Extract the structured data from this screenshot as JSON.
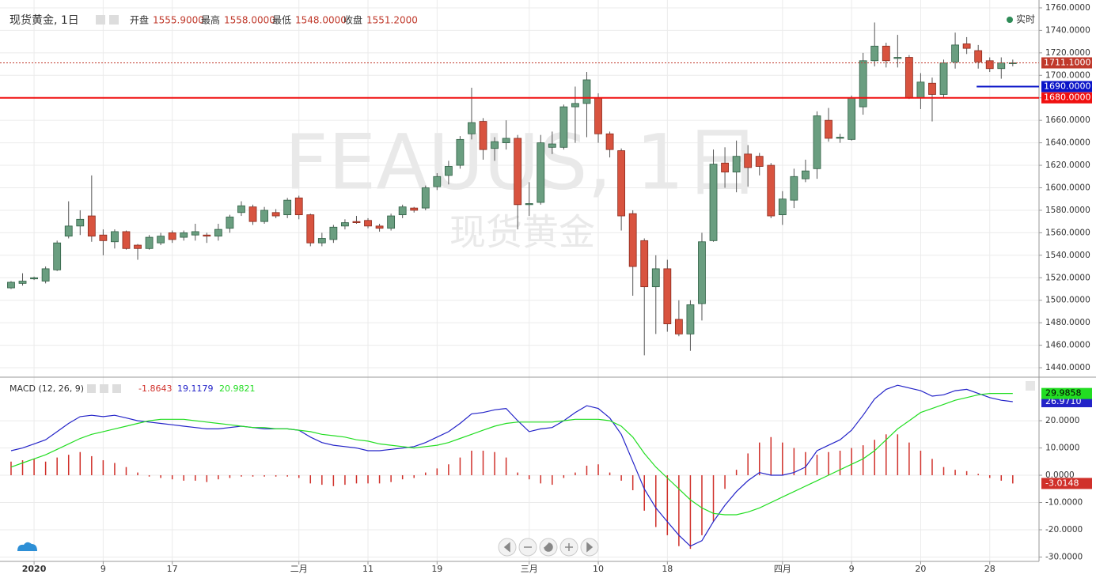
{
  "header": {
    "title": "现货黄金, 1日",
    "fields": [
      {
        "label": "开盘",
        "value": "1555.9000"
      },
      {
        "label": "最高",
        "value": "1558.0000"
      },
      {
        "label": "最低",
        "value": "1548.0000"
      },
      {
        "label": "收盘",
        "value": "1551.2000"
      }
    ],
    "status": "实时"
  },
  "chart_data": [
    {
      "type": "candlestick",
      "watermark": "FEAUUS, 1日",
      "watermark_sub": "现货黄金",
      "categories": [
        null,
        null,
        "2020",
        null,
        null,
        null,
        null,
        null,
        "9",
        null,
        null,
        null,
        null,
        null,
        "17",
        null,
        null,
        null,
        null,
        null,
        null,
        null,
        null,
        null,
        null,
        "二月",
        null,
        null,
        null,
        null,
        null,
        "11",
        null,
        null,
        null,
        null,
        null,
        "19",
        null,
        null,
        null,
        null,
        null,
        null,
        null,
        "三月",
        null,
        null,
        null,
        null,
        null,
        "10",
        null,
        null,
        null,
        null,
        null,
        "18",
        null,
        null,
        null,
        null,
        null,
        null,
        null,
        null,
        null,
        "四月",
        null,
        null,
        null,
        null,
        null,
        "9",
        null,
        null,
        null,
        null,
        null,
        "20",
        null,
        null,
        null,
        null,
        null,
        "28",
        null,
        null
      ],
      "open": [
        1511,
        1515,
        1519,
        1517,
        1527,
        1557,
        1566,
        1575,
        1558,
        1552,
        1561,
        1549,
        1546,
        1551,
        1560,
        1556,
        1558,
        1558,
        1557,
        1564,
        1578,
        1583,
        1570,
        1578,
        1576,
        1591,
        1576,
        1551,
        1554,
        1566,
        1570,
        1571,
        1566,
        1564,
        1576,
        1582,
        1582,
        1601,
        1611,
        1620,
        1648,
        1659,
        1635,
        1640,
        1644,
        1585,
        1587,
        1636,
        1636,
        1672,
        1675,
        1680,
        1648,
        1633,
        1577,
        1553,
        1512,
        1528,
        1483,
        1470,
        1497,
        1553,
        1622,
        1614,
        1630,
        1628,
        1620,
        1576,
        1589,
        1608,
        1617,
        1660,
        1644,
        1643,
        1672,
        1713,
        1726,
        1715,
        1716,
        1680,
        1693,
        1683,
        1712,
        1728,
        1722,
        1713,
        1706,
        1711
      ],
      "high": [
        1517,
        1524,
        1521,
        1530,
        1553,
        1588,
        1580,
        1611,
        1563,
        1563,
        1562,
        1550,
        1558,
        1560,
        1562,
        1562,
        1568,
        1560,
        1568,
        1576,
        1588,
        1585,
        1583,
        1581,
        1591,
        1593,
        1577,
        1560,
        1567,
        1572,
        1575,
        1573,
        1568,
        1577,
        1585,
        1583,
        1602,
        1613,
        1624,
        1646,
        1689,
        1662,
        1645,
        1660,
        1647,
        1605,
        1647,
        1650,
        1674,
        1690,
        1703,
        1684,
        1650,
        1635,
        1580,
        1555,
        1540,
        1536,
        1500,
        1500,
        1560,
        1634,
        1636,
        1642,
        1638,
        1631,
        1622,
        1597,
        1617,
        1625,
        1668,
        1671,
        1648,
        1682,
        1720,
        1747,
        1729,
        1736,
        1718,
        1702,
        1698,
        1714,
        1738,
        1734,
        1727,
        1716,
        1716,
        1714
      ],
      "low": [
        1510,
        1513,
        1518,
        1515,
        1526,
        1555,
        1558,
        1552,
        1540,
        1546,
        1545,
        1536,
        1545,
        1549,
        1551,
        1553,
        1553,
        1551,
        1553,
        1560,
        1575,
        1567,
        1568,
        1573,
        1573,
        1572,
        1548,
        1548,
        1551,
        1563,
        1568,
        1564,
        1561,
        1562,
        1573,
        1578,
        1580,
        1598,
        1603,
        1617,
        1643,
        1625,
        1624,
        1634,
        1563,
        1575,
        1585,
        1630,
        1634,
        1640,
        1645,
        1640,
        1627,
        1562,
        1504,
        1451,
        1470,
        1472,
        1468,
        1455,
        1482,
        1552,
        1600,
        1596,
        1601,
        1611,
        1573,
        1567,
        1582,
        1605,
        1608,
        1641,
        1640,
        1642,
        1665,
        1708,
        1707,
        1707,
        1679,
        1670,
        1659,
        1680,
        1706,
        1719,
        1706,
        1703,
        1697,
        1708
      ],
      "close": [
        1516,
        1517,
        1520,
        1528,
        1551,
        1566,
        1572,
        1557,
        1553,
        1561,
        1546,
        1546,
        1556,
        1557,
        1554,
        1560,
        1561,
        1557,
        1563,
        1574,
        1584,
        1570,
        1580,
        1575,
        1589,
        1576,
        1551,
        1555,
        1565,
        1569,
        1569,
        1566,
        1564,
        1575,
        1583,
        1580,
        1600,
        1610,
        1619,
        1643,
        1658,
        1634,
        1641,
        1644,
        1585,
        1586,
        1640,
        1639,
        1672,
        1675,
        1696,
        1648,
        1634,
        1575,
        1530,
        1512,
        1528,
        1479,
        1470,
        1496,
        1552,
        1621,
        1614,
        1628,
        1618,
        1619,
        1575,
        1590,
        1610,
        1615,
        1664,
        1644,
        1645,
        1680,
        1713,
        1726,
        1713,
        1716,
        1680,
        1694,
        1683,
        1711,
        1727,
        1724,
        1712,
        1706,
        1711,
        1711.1
      ],
      "up_color": "#6a9e80",
      "down_color": "#d8533f",
      "ylim": [
        1433,
        1767
      ],
      "yticks": [
        {
          "value": 1440,
          "label": "1440.0000"
        },
        {
          "value": 1460,
          "label": "1460.0000"
        },
        {
          "value": 1480,
          "label": "1480.0000"
        },
        {
          "value": 1500,
          "label": "1500.0000"
        },
        {
          "value": 1520,
          "label": "1520.0000"
        },
        {
          "value": 1540,
          "label": "1540.0000"
        },
        {
          "value": 1560,
          "label": "1560.0000"
        },
        {
          "value": 1580,
          "label": "1580.0000"
        },
        {
          "value": 1600,
          "label": "1600.0000"
        },
        {
          "value": 1620,
          "label": "1620.0000"
        },
        {
          "value": 1640,
          "label": "1640.0000"
        },
        {
          "value": 1660,
          "label": "1660.0000"
        },
        {
          "value": 1680,
          "label": "1680.0000"
        },
        {
          "value": 1700,
          "label": "1700.0000"
        },
        {
          "value": 1720,
          "label": "1720.0000"
        },
        {
          "value": 1740,
          "label": "1740.0000"
        },
        {
          "value": 1760,
          "label": "1760.0000"
        }
      ],
      "hlines": [
        {
          "value": 1711.1,
          "label": "1711.1000",
          "color": "#c0392b",
          "dash": true
        },
        {
          "value": 1690,
          "label": "1690.0000",
          "color": "#0a14c8",
          "from_index": 84
        },
        {
          "value": 1680,
          "label": "1680.0000",
          "color": "#f01010"
        }
      ],
      "grid": true
    },
    {
      "type": "macd",
      "title": "MACD (12, 26, 9)",
      "series": [
        {
          "kind": "histogram",
          "color": "#d0302a",
          "header_value": "-1.8643",
          "last_label": "-3.0148",
          "values": [
            5,
            5.5,
            6,
            5,
            6.5,
            7.5,
            8.5,
            7,
            5.5,
            4.5,
            3,
            1,
            -0.5,
            -1,
            -1.5,
            -2,
            -2,
            -2.5,
            -1.5,
            -1,
            -0.5,
            -0.5,
            -0.5,
            -0.5,
            -0.5,
            -1,
            -3,
            -3.5,
            -4,
            -3.5,
            -3,
            -3,
            -3,
            -2.5,
            -1.5,
            -1,
            1,
            2.5,
            4,
            6.5,
            9,
            9,
            8.5,
            6.5,
            1,
            -1.5,
            -3,
            -3.5,
            -1,
            1,
            3.5,
            4,
            1,
            -2,
            -5.5,
            -13,
            -19,
            -22,
            -26,
            -27,
            -22,
            -17,
            -5,
            2,
            8,
            12,
            14,
            12,
            10,
            8.5,
            7.5,
            8.5,
            9,
            10,
            11,
            13,
            15,
            15,
            12,
            9,
            6,
            3,
            2,
            1.5,
            0.5,
            -1,
            -2,
            -3.0148
          ]
        },
        {
          "kind": "line",
          "color": "#2323c8",
          "header_value": "19.1179",
          "last_label": "26.9710",
          "values": [
            9,
            10,
            11.5,
            13,
            16,
            19,
            21.5,
            22,
            21.5,
            22,
            21,
            20,
            19.5,
            19,
            18.5,
            18,
            17.5,
            17,
            17,
            17.5,
            18,
            17.5,
            17,
            17,
            17,
            16.5,
            14,
            12,
            11,
            10.5,
            10,
            9,
            9,
            9.5,
            10,
            10.5,
            12,
            14,
            16,
            19,
            22.5,
            23,
            24,
            24.5,
            20,
            16,
            17,
            17.5,
            20,
            23,
            25.5,
            24.5,
            21,
            15,
            5,
            -5,
            -12,
            -17,
            -22,
            -26,
            -24,
            -17,
            -11,
            -6,
            -2,
            1,
            0,
            0,
            1,
            3,
            9,
            11,
            13,
            16.5,
            22,
            28,
            31.5,
            33,
            32,
            31,
            29,
            29.5,
            31,
            31.5,
            30,
            28.5,
            27.5,
            26.971
          ]
        },
        {
          "kind": "line",
          "color": "#22dd22",
          "header_value": "20.9821",
          "last_label": "29.9858",
          "values": [
            3,
            4.5,
            6,
            7.5,
            9.5,
            11.5,
            13.5,
            15,
            16,
            17,
            18,
            19,
            20,
            20.5,
            20.5,
            20.5,
            20,
            19.5,
            19,
            18.5,
            18,
            17.5,
            17.5,
            17,
            17,
            16.5,
            16,
            15,
            14.5,
            14,
            13,
            12.5,
            11.5,
            11,
            10.5,
            10,
            10.5,
            11,
            12,
            13.5,
            15,
            16.5,
            18,
            19,
            19.5,
            19.5,
            19.5,
            19.5,
            20,
            20.5,
            20.5,
            20.5,
            20,
            18,
            14,
            8,
            3,
            -1,
            -5,
            -9,
            -12,
            -14,
            -14.5,
            -14.5,
            -13.5,
            -12,
            -10,
            -8,
            -6,
            -4,
            -2,
            0,
            2,
            4,
            6,
            9,
            13,
            17,
            20,
            23,
            24.5,
            26,
            27.5,
            28.5,
            29.5,
            30,
            30,
            29.9858
          ]
        }
      ],
      "ylim": [
        -31.6,
        35.1
      ],
      "yticks": [
        {
          "value": -30,
          "label": "-30.0000"
        },
        {
          "value": -20,
          "label": "-20.0000"
        },
        {
          "value": -10,
          "label": "-10.0000"
        },
        {
          "value": 0,
          "label": "0.0000"
        },
        {
          "value": 10,
          "label": "10.0000"
        },
        {
          "value": 20,
          "label": "20.0000"
        }
      ],
      "grid": true
    }
  ]
}
